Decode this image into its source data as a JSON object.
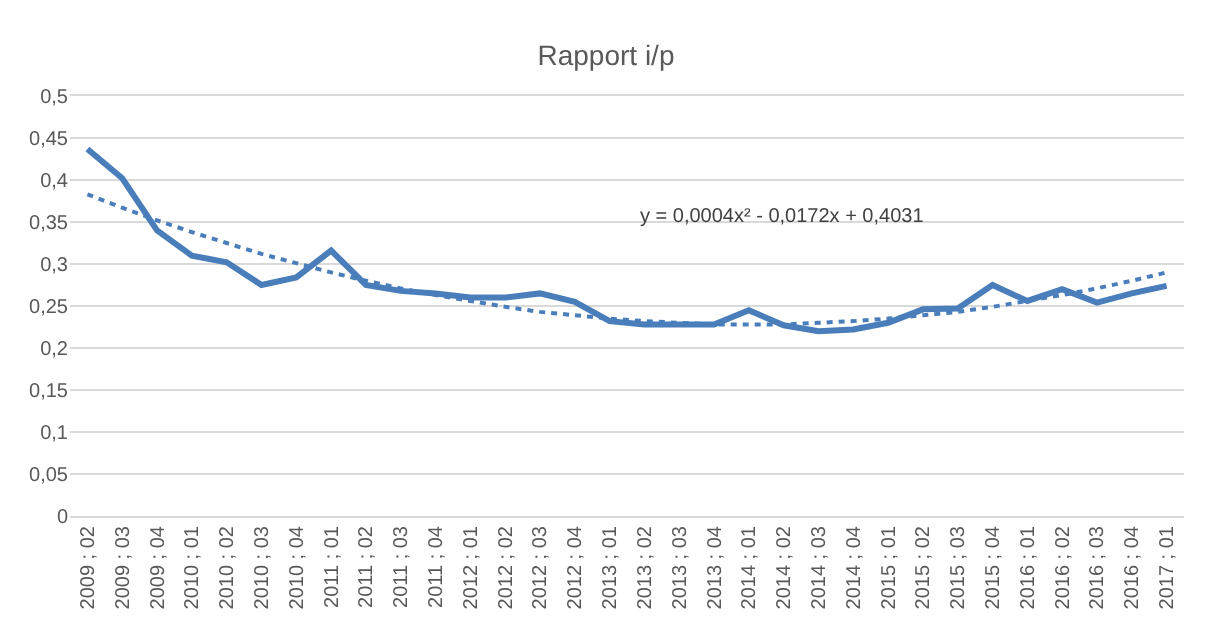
{
  "chart_data": {
    "type": "line",
    "title": "Rapport i/p",
    "categories": [
      "2009 ; 02",
      "2009 ; 03",
      "2009 ; 04",
      "2010 ; 01",
      "2010 ; 02",
      "2010 ; 03",
      "2010 ; 04",
      "2011 ; 01",
      "2011 ; 02",
      "2011 ; 03",
      "2011 ; 04",
      "2012 ; 01",
      "2012 ; 02",
      "2012 ; 03",
      "2012 ; 04",
      "2013 ; 01",
      "2013 ; 02",
      "2013 ; 03",
      "2013 ; 04",
      "2014 ; 01",
      "2014 ; 02",
      "2014 ; 03",
      "2014 ; 04",
      "2015 ; 01",
      "2015 ; 02",
      "2015 ; 03",
      "2015 ; 04",
      "2016 ; 01",
      "2016 ; 02",
      "2016 ; 03",
      "2016 ; 04",
      "2017 ; 01"
    ],
    "series": [
      {
        "color": "#4a7ebb",
        "line_style": "solid",
        "values": [
          0.437,
          0.402,
          0.34,
          0.31,
          0.302,
          0.275,
          0.284,
          0.316,
          0.275,
          0.268,
          0.265,
          0.26,
          0.26,
          0.265,
          0.255,
          0.232,
          0.228,
          0.228,
          0.228,
          0.245,
          0.227,
          0.22,
          0.222,
          0.23,
          0.246,
          0.247,
          0.275,
          0.256,
          0.27,
          0.254,
          0.265,
          0.274
        ]
      },
      {
        "color": "#4a7ebb",
        "line_style": "dotted",
        "values": [
          0.383,
          0.367,
          0.352,
          0.338,
          0.325,
          0.312,
          0.301,
          0.29,
          0.28,
          0.271,
          0.263,
          0.256,
          0.249,
          0.243,
          0.239,
          0.235,
          0.232,
          0.23,
          0.228,
          0.228,
          0.228,
          0.23,
          0.232,
          0.235,
          0.239,
          0.243,
          0.249,
          0.256,
          0.263,
          0.271,
          0.28,
          0.29
        ]
      }
    ],
    "ylim": [
      0,
      0.5
    ],
    "yticks": [
      {
        "value": 0,
        "label": "0"
      },
      {
        "value": 0.05,
        "label": "0,05"
      },
      {
        "value": 0.1,
        "label": "0,1"
      },
      {
        "value": 0.15,
        "label": "0,15"
      },
      {
        "value": 0.2,
        "label": "0,2"
      },
      {
        "value": 0.25,
        "label": "0,25"
      },
      {
        "value": 0.3,
        "label": "0,3"
      },
      {
        "value": 0.35,
        "label": "0,35"
      },
      {
        "value": 0.4,
        "label": "0,4"
      },
      {
        "value": 0.45,
        "label": "0,45"
      },
      {
        "value": 0.5,
        "label": "0,5"
      }
    ],
    "annotations": [
      "y = 0,0004x² - 0,0172x + 0,4031"
    ],
    "grid": "y",
    "marker": "none"
  }
}
